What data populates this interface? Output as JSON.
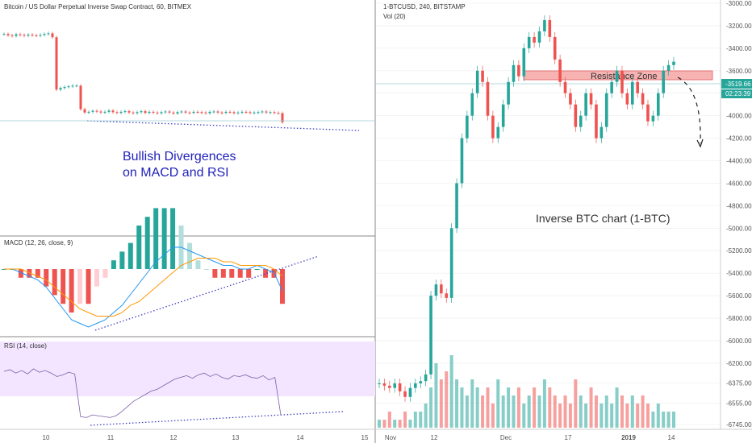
{
  "colors": {
    "up": "#26a69a",
    "down": "#ef5350",
    "macd_line": "#2196f3",
    "signal_line": "#ff9800",
    "hist_pos": "#26a69a",
    "hist_pos_light": "#b2dfdb",
    "hist_neg": "#ef5350",
    "hist_neg_light": "#ffcdd2",
    "rsi_line": "#7b5ea7",
    "rsi_band": "#f3e5ff",
    "divergence": "#3f3fbf",
    "annotation_blue": "#2222bb",
    "resistance_fill": "#f7b2b2",
    "resistance_stroke": "#e57373",
    "price_badge": "#26a69a",
    "grid": "#eeeeee",
    "border": "#888888"
  },
  "left_chart": {
    "title": "Bitcoin / US Dollar Perpetual Inverse Swap Contract, 60, BITMEX",
    "annotation_line1": "Bullish Divergences",
    "annotation_line2": "on MACD and RSI"
  },
  "macd_panel": {
    "label": "MACD (12, 26, close, 9)"
  },
  "rsi_panel": {
    "label": "RSI (14, close)",
    "band": [
      30,
      70
    ]
  },
  "right_chart": {
    "title": "1-BTCUSD, 240, BITSTAMP",
    "subtitle": "Vol (20)",
    "annotation": "Inverse BTC chart (1-BTC)",
    "resistance_label": "Resistance Zone",
    "price_badge": "-3519.66",
    "time_badge": "02:23:39"
  },
  "chart_data": [
    {
      "type": "candlestick",
      "name": "left-price",
      "x_ticks": [
        "10",
        "11",
        "12",
        "13",
        "14",
        "15"
      ],
      "close": [
        3610,
        3606,
        3604,
        3609,
        3607,
        3605,
        3608,
        3606,
        3605,
        3607,
        3610,
        3612,
        3600,
        3440,
        3445,
        3448,
        3450,
        3452,
        3452,
        3380,
        3370,
        3372,
        3375,
        3373,
        3370,
        3372,
        3376,
        3371,
        3369,
        3372,
        3374,
        3370,
        3368,
        3371,
        3374,
        3369,
        3372,
        3370,
        3368,
        3371,
        3373,
        3370,
        3367,
        3371,
        3373,
        3370,
        3369,
        3372,
        3371,
        3370,
        3368,
        3372,
        3373,
        3370,
        3369,
        3372,
        3371,
        3368,
        3370,
        3372,
        3371,
        3369,
        3370,
        3371,
        3373,
        3370,
        3371,
        3369,
        3368,
        3340
      ]
    },
    {
      "type": "line",
      "name": "macd",
      "macd": [
        0,
        0,
        -1,
        -2,
        -3,
        -5,
        -8,
        -11,
        -14,
        -15,
        -16,
        -15,
        -14,
        -12,
        -10,
        -7,
        -4,
        -1,
        2,
        4,
        6,
        6,
        5,
        4,
        3,
        2,
        1,
        1,
        0,
        0,
        1,
        0,
        -1,
        -6
      ],
      "signal": [
        0,
        0,
        0,
        -1,
        -2,
        -3,
        -5,
        -7,
        -9,
        -11,
        -12,
        -13,
        -13,
        -13,
        -12,
        -10,
        -9,
        -7,
        -5,
        -3,
        -1,
        1,
        2,
        3,
        3,
        3,
        2,
        2,
        1,
        1,
        1,
        1,
        0,
        -2
      ]
    },
    {
      "type": "line",
      "name": "rsi",
      "rsi": [
        65,
        67,
        63,
        66,
        62,
        68,
        64,
        66,
        63,
        59,
        61,
        64,
        62,
        12,
        11,
        14,
        13,
        12,
        11,
        13,
        18,
        24,
        30,
        34,
        38,
        42,
        44,
        48,
        52,
        56,
        58,
        60,
        57,
        61,
        63,
        59,
        62,
        58,
        56,
        60,
        59,
        61,
        58,
        57,
        60,
        55,
        58,
        14
      ]
    },
    {
      "type": "candlestick",
      "name": "right-price",
      "x_ticks": [
        "Nov",
        "12",
        "Dec",
        "17",
        "2019",
        "14"
      ],
      "y_ticks": [
        "-3000.00",
        "-3200.00",
        "-3400.00",
        "-3600.00",
        "-3800.00",
        "-4000.00",
        "-4200.00",
        "-4400.00",
        "-4600.00",
        "-4800.00",
        "-5000.00",
        "-5200.00",
        "-5400.00",
        "-5600.00",
        "-5800.00",
        "-6000.00",
        "-6200.00",
        "-6375.00",
        "-6555.00",
        "-6745.00"
      ],
      "close": [
        -6380,
        -6400,
        -6420,
        -6380,
        -6450,
        -6500,
        -6420,
        -6380,
        -6360,
        -6300,
        -5600,
        -5500,
        -5580,
        -5620,
        -5000,
        -4600,
        -4200,
        -4000,
        -3800,
        -3600,
        -3700,
        -4000,
        -4200,
        -4100,
        -3900,
        -3700,
        -3550,
        -3650,
        -3400,
        -3300,
        -3350,
        -3250,
        -3150,
        -3300,
        -3500,
        -3700,
        -3800,
        -3900,
        -4100,
        -4000,
        -3800,
        -3900,
        -4200,
        -4100,
        -3800,
        -3700,
        -3600,
        -3800,
        -3900,
        -3700,
        -3800,
        -3900,
        -4050,
        -4000,
        -3800,
        -3600,
        -3550,
        -3520
      ],
      "resistance": [
        -3420,
        -3520
      ],
      "last_price": -3519.66
    },
    {
      "type": "bar",
      "name": "volume",
      "values": [
        1,
        1,
        2,
        1,
        1,
        2,
        1,
        2,
        2,
        3,
        5,
        8,
        6,
        7,
        9,
        6,
        5,
        4,
        6,
        5,
        4,
        5,
        3,
        6,
        4,
        5,
        4,
        5,
        3,
        4,
        5,
        4,
        6,
        5,
        4,
        3,
        4,
        3,
        6,
        4,
        3,
        5,
        4,
        3,
        4,
        3,
        5,
        4,
        3,
        4,
        3,
        4,
        3,
        2,
        3,
        2,
        2,
        2
      ]
    }
  ]
}
